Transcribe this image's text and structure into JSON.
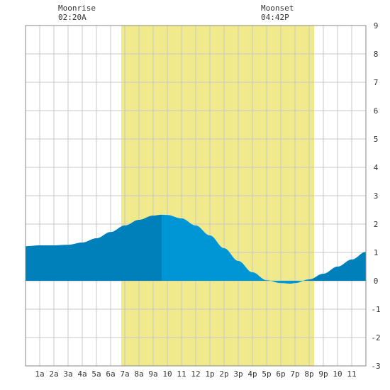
{
  "moon": {
    "rise_label": "Moonrise",
    "rise_time": "02:20A",
    "set_label": "Moonset",
    "set_time": "04:42P"
  },
  "chart_data": {
    "type": "area",
    "title": "",
    "xlabel": "",
    "ylabel": "",
    "xlim": [
      0,
      24
    ],
    "ylim": [
      -3,
      9
    ],
    "grid": true,
    "x_ticks": [
      {
        "x": 1,
        "label": "1a"
      },
      {
        "x": 2,
        "label": "2a"
      },
      {
        "x": 3,
        "label": "3a"
      },
      {
        "x": 4,
        "label": "4a"
      },
      {
        "x": 5,
        "label": "5a"
      },
      {
        "x": 6,
        "label": "6a"
      },
      {
        "x": 7,
        "label": "7a"
      },
      {
        "x": 8,
        "label": "8a"
      },
      {
        "x": 9,
        "label": "9a"
      },
      {
        "x": 10,
        "label": "10"
      },
      {
        "x": 11,
        "label": "11"
      },
      {
        "x": 12,
        "label": "12"
      },
      {
        "x": 13,
        "label": "1p"
      },
      {
        "x": 14,
        "label": "2p"
      },
      {
        "x": 15,
        "label": "3p"
      },
      {
        "x": 16,
        "label": "4p"
      },
      {
        "x": 17,
        "label": "5p"
      },
      {
        "x": 18,
        "label": "6p"
      },
      {
        "x": 19,
        "label": "7p"
      },
      {
        "x": 20,
        "label": "8p"
      },
      {
        "x": 21,
        "label": "9p"
      },
      {
        "x": 22,
        "label": "10"
      },
      {
        "x": 23,
        "label": "11"
      }
    ],
    "y_ticks": [
      -3,
      -2,
      -1,
      0,
      1,
      2,
      3,
      4,
      5,
      6,
      7,
      8,
      9
    ],
    "daylight": {
      "start": 6.75,
      "end": 20.35,
      "color": "#f0ea8c"
    },
    "moonrise_x": 2.33,
    "moonset_x": 16.7,
    "tide": {
      "x": [
        0,
        1,
        2,
        3,
        4,
        5,
        6,
        7,
        8,
        9,
        9.6,
        10,
        11,
        12,
        13,
        14,
        15,
        16,
        17,
        18,
        18.7,
        19,
        20,
        21,
        22,
        23,
        24
      ],
      "y": [
        1.22,
        1.25,
        1.25,
        1.27,
        1.35,
        1.5,
        1.72,
        1.95,
        2.15,
        2.3,
        2.33,
        2.32,
        2.2,
        1.95,
        1.6,
        1.15,
        0.7,
        0.3,
        0.02,
        -0.08,
        -0.1,
        -0.08,
        0.05,
        0.25,
        0.5,
        0.75,
        1.02
      ]
    },
    "highlight_start": 9.6,
    "highlight_end": 20,
    "colors": {
      "tide": "#0080ba",
      "tide_highlight": "#0096d6",
      "grid": "#c8c8c8",
      "border": "#888888"
    }
  }
}
